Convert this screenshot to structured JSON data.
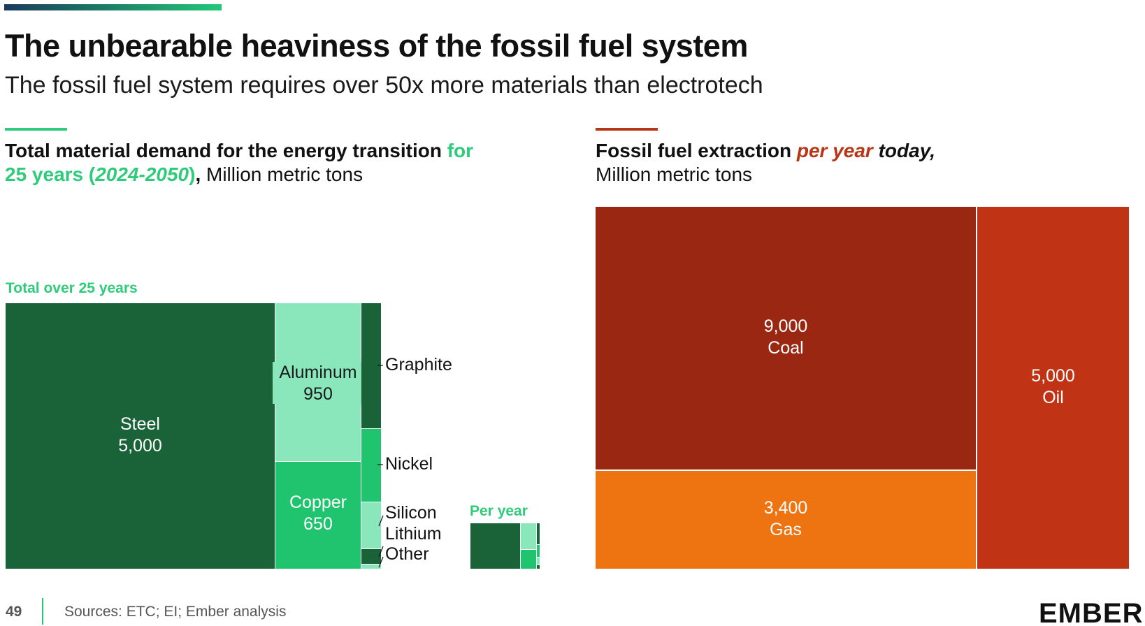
{
  "header": {
    "title": "The unbearable heaviness of the fossil fuel system",
    "subtitle": "The fossil fuel system requires over 50x more materials than electrotech"
  },
  "left_panel": {
    "title_part1": "Total material demand for the energy transition ",
    "title_part2": "for",
    "title_part3": "25 years (",
    "title_part4": "2024-2050",
    "title_part5": ")",
    "title_part6": ", ",
    "title_part7": "Million metric tons",
    "total_label": "Total over 25 years",
    "per_year_label": "Per year"
  },
  "right_panel": {
    "title_part1": "Fossil fuel extraction ",
    "title_part2": "per year",
    "title_part3": " today,",
    "title_part4": "Million metric tons"
  },
  "footer": {
    "page_number": "49",
    "sources": "Sources: ETC; EI; Ember analysis",
    "logo": "EMBER"
  },
  "colors": {
    "dark_green": "#1a6338",
    "mint": "#8ae6bb",
    "bright_green": "#21c46e",
    "dark_red": "#9a2712",
    "red": "#c03415",
    "orange": "#ee7412",
    "accent_green": "#2ecc7a",
    "accent_red": "#b83516"
  },
  "chart_data": [
    {
      "type": "treemap",
      "name": "material-demand-treemap",
      "items": [
        {
          "label": "Steel",
          "value": 5000,
          "value_label": "5,000"
        },
        {
          "label": "Aluminum",
          "value": 950,
          "value_label": "950"
        },
        {
          "label": "Copper",
          "value": 650,
          "value_label": "650"
        },
        {
          "label": "Graphite",
          "value": null
        },
        {
          "label": "Nickel",
          "value": null
        },
        {
          "label": "Silicon",
          "value": null
        },
        {
          "label": "Lithium",
          "value": null
        },
        {
          "label": "Other",
          "value": null
        }
      ]
    },
    {
      "type": "treemap",
      "name": "fossil-fuel-treemap",
      "items": [
        {
          "label": "Coal",
          "value": 9000,
          "value_label": "9,000"
        },
        {
          "label": "Gas",
          "value": 3400,
          "value_label": "3,400"
        },
        {
          "label": "Oil",
          "value": 5000,
          "value_label": "5,000"
        }
      ]
    }
  ]
}
